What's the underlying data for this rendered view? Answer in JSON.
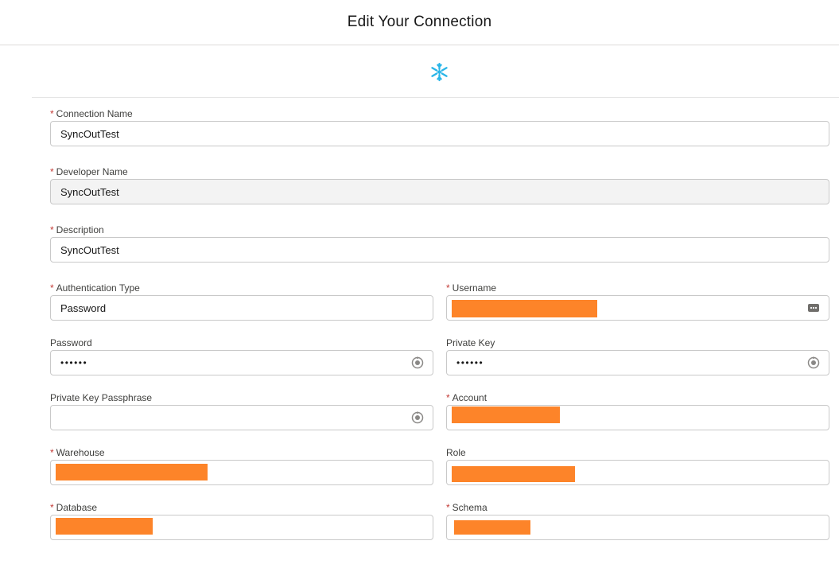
{
  "header": {
    "title": "Edit Your Connection"
  },
  "logo": {
    "icon": "snowflake-icon",
    "color": "#29b5e8"
  },
  "fields": {
    "connection_name": {
      "label": "Connection Name",
      "required": "*",
      "value": "SyncOutTest"
    },
    "developer_name": {
      "label": "Developer Name",
      "required": "*",
      "value": "SyncOutTest"
    },
    "description": {
      "label": "Description",
      "required": "*",
      "value": "SyncOutTest"
    },
    "authentication_type": {
      "label": "Authentication Type",
      "required": "*",
      "value": "Password"
    },
    "username": {
      "label": "Username",
      "required": "*",
      "value": "",
      "icon": "autofill-icon"
    },
    "password": {
      "label": "Password",
      "value": "••••••",
      "icon": "reveal-icon"
    },
    "private_key": {
      "label": "Private Key",
      "value": "••••••",
      "icon": "reveal-icon"
    },
    "private_key_passphrase": {
      "label": "Private Key Passphrase",
      "value": "",
      "icon": "reveal-icon"
    },
    "account": {
      "label": "Account",
      "required": "*",
      "value": ""
    },
    "warehouse": {
      "label": "Warehouse",
      "required": "*",
      "value": ""
    },
    "role": {
      "label": "Role",
      "value": ""
    },
    "database": {
      "label": "Database",
      "required": "*",
      "value": ""
    },
    "schema": {
      "label": "Schema",
      "required": "*",
      "value": ""
    }
  },
  "colors": {
    "redaction": "#fd8429",
    "required": "#c23934",
    "border": "#c9c9c9"
  }
}
